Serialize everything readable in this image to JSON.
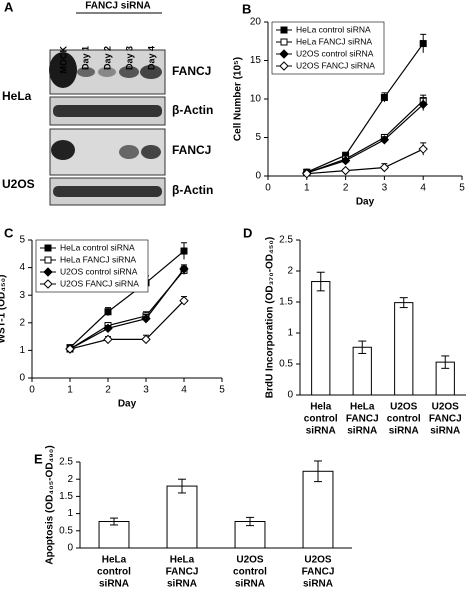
{
  "blot": {
    "panel": "A",
    "group_label": "FANCJ siRNA",
    "lanes": [
      "MOCK",
      "Day 1",
      "Day 2",
      "Day 3",
      "Day 4"
    ],
    "rows": [
      {
        "cell_line": "HeLa",
        "proteins": [
          "FANCJ",
          "β-Actin"
        ]
      },
      {
        "cell_line": "U2OS",
        "proteins": [
          "FANCJ",
          "β-Actin"
        ]
      }
    ]
  },
  "chart_data": [
    {
      "panel": "B",
      "type": "line",
      "xlabel": "Day",
      "ylabel": "Cell Number (10⁵)",
      "xlim": [
        0,
        5
      ],
      "xticks": [
        0,
        1,
        2,
        3,
        4,
        5
      ],
      "ylim": [
        0,
        20
      ],
      "yticks": [
        0,
        5,
        10,
        15,
        20
      ],
      "legend": "upper left",
      "x": [
        1,
        2,
        3,
        4
      ],
      "series": [
        {
          "name": "HeLa control siRNA",
          "color": "#000000",
          "marker": "square",
          "filled": true,
          "values": [
            0.5,
            2.7,
            10.2,
            17.2
          ],
          "errors": [
            0.2,
            0.3,
            0.6,
            1.2
          ]
        },
        {
          "name": "HeLa FANCJ siRNA",
          "color": "#000000",
          "marker": "square",
          "filled": false,
          "values": [
            0.4,
            2.2,
            5.0,
            9.8
          ],
          "errors": [
            0.1,
            0.3,
            0.4,
            0.7
          ]
        },
        {
          "name": "U2OS control siRNA",
          "color": "#000000",
          "marker": "diamond",
          "filled": true,
          "values": [
            0.4,
            2.0,
            4.7,
            9.3
          ],
          "errors": [
            0.1,
            0.3,
            0.4,
            0.8
          ]
        },
        {
          "name": "U2OS FANCJ siRNA",
          "color": "#000000",
          "marker": "diamond",
          "filled": false,
          "values": [
            0.3,
            0.7,
            1.1,
            3.5
          ],
          "errors": [
            0.1,
            0.2,
            0.5,
            0.8
          ]
        }
      ]
    },
    {
      "panel": "C",
      "type": "line",
      "xlabel": "Day",
      "ylabel": "WST-1 (OD₄₅₀)",
      "xlim": [
        0,
        5
      ],
      "xticks": [
        0,
        1,
        2,
        3,
        4,
        5
      ],
      "ylim": [
        0,
        5
      ],
      "yticks": [
        0,
        1,
        2,
        3,
        4,
        5
      ],
      "legend": "upper left",
      "x": [
        1,
        2,
        3,
        4
      ],
      "series": [
        {
          "name": "HeLa control siRNA",
          "color": "#000000",
          "marker": "square",
          "filled": true,
          "values": [
            1.1,
            2.4,
            3.45,
            4.6
          ],
          "errors": [
            0.1,
            0.15,
            0.25,
            0.3
          ]
        },
        {
          "name": "HeLa FANCJ siRNA",
          "color": "#000000",
          "marker": "square",
          "filled": false,
          "values": [
            1.05,
            1.9,
            2.25,
            3.9
          ],
          "errors": [
            0.1,
            0.1,
            0.15,
            0.15
          ]
        },
        {
          "name": "U2OS control siRNA",
          "color": "#000000",
          "marker": "diamond",
          "filled": true,
          "values": [
            1.05,
            1.8,
            2.15,
            3.95
          ],
          "errors": [
            0.1,
            0.1,
            0.15,
            0.15
          ]
        },
        {
          "name": "U2OS FANCJ siRNA",
          "color": "#000000",
          "marker": "diamond",
          "filled": false,
          "values": [
            1.05,
            1.4,
            1.4,
            2.8
          ],
          "errors": [
            0.1,
            0.1,
            0.15,
            0.15
          ]
        }
      ]
    },
    {
      "panel": "D",
      "type": "bar",
      "ylabel": "BrdU Incorporation (OD₃₇₀-OD₄₅₀)",
      "ylim": [
        0,
        2.5
      ],
      "yticks": [
        0,
        0.5,
        1,
        1.5,
        2,
        2.5
      ],
      "color": "#ffffff",
      "categories": [
        [
          "Hela",
          "control",
          "siRNA"
        ],
        [
          "HeLa",
          "FANCJ",
          "siRNA"
        ],
        [
          "U2OS",
          "control",
          "siRNA"
        ],
        [
          "U2OS",
          "FANCJ",
          "siRNA"
        ]
      ],
      "values": [
        1.83,
        0.77,
        1.49,
        0.53
      ],
      "errors": [
        0.15,
        0.1,
        0.08,
        0.1
      ]
    },
    {
      "panel": "E",
      "type": "bar",
      "ylabel": "Apoptosis (OD₄₀₅-OD₄₉₀)",
      "ylim": [
        0,
        2.5
      ],
      "yticks": [
        0,
        0.5,
        1,
        1.5,
        2,
        2.5
      ],
      "color": "#ffffff",
      "categories": [
        [
          "HeLa",
          "control",
          "siRNA"
        ],
        [
          "HeLa",
          "FANCJ",
          "siRNA"
        ],
        [
          "U2OS",
          "control",
          "siRNA"
        ],
        [
          "U2OS",
          "FANCJ",
          "siRNA"
        ]
      ],
      "values": [
        0.77,
        1.8,
        0.77,
        2.23
      ],
      "errors": [
        0.1,
        0.2,
        0.12,
        0.3
      ]
    }
  ]
}
